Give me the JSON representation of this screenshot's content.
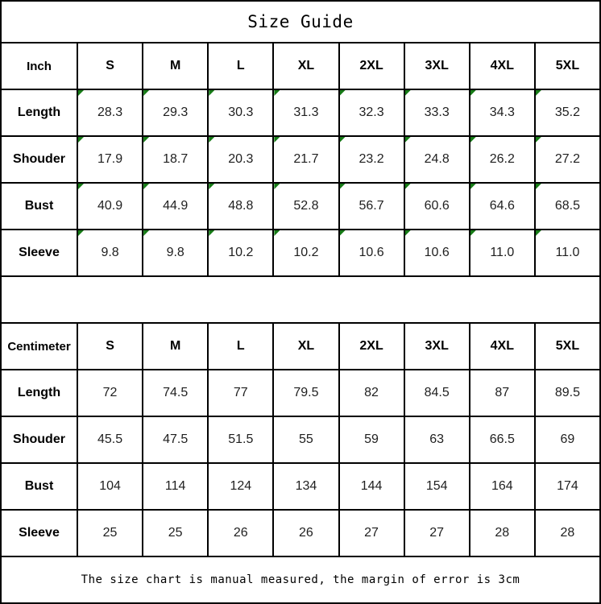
{
  "title": "Size Guide",
  "footer_note": "The size chart is manual measured, the margin of error is 3cm",
  "colors": {
    "border": "#000000",
    "background": "#ffffff",
    "text": "#1f1f1f",
    "corner_marker_green": "#177c17"
  },
  "tables": [
    {
      "unit": "Inch",
      "sizes": [
        "S",
        "M",
        "L",
        "XL",
        "2XL",
        "3XL",
        "4XL",
        "5XL"
      ],
      "cell_corner_markers": true,
      "rows": [
        {
          "label": "Length",
          "values": [
            "28.3",
            "29.3",
            "30.3",
            "31.3",
            "32.3",
            "33.3",
            "34.3",
            "35.2"
          ]
        },
        {
          "label": "Shouder",
          "values": [
            "17.9",
            "18.7",
            "20.3",
            "21.7",
            "23.2",
            "24.8",
            "26.2",
            "27.2"
          ]
        },
        {
          "label": "Bust",
          "values": [
            "40.9",
            "44.9",
            "48.8",
            "52.8",
            "56.7",
            "60.6",
            "64.6",
            "68.5"
          ]
        },
        {
          "label": "Sleeve",
          "values": [
            "9.8",
            "9.8",
            "10.2",
            "10.2",
            "10.6",
            "10.6",
            "11.0",
            "11.0"
          ]
        }
      ]
    },
    {
      "unit": "Centimeter",
      "sizes": [
        "S",
        "M",
        "L",
        "XL",
        "2XL",
        "3XL",
        "4XL",
        "5XL"
      ],
      "cell_corner_markers": false,
      "rows": [
        {
          "label": "Length",
          "values": [
            "72",
            "74.5",
            "77",
            "79.5",
            "82",
            "84.5",
            "87",
            "89.5"
          ]
        },
        {
          "label": "Shouder",
          "values": [
            "45.5",
            "47.5",
            "51.5",
            "55",
            "59",
            "63",
            "66.5",
            "69"
          ]
        },
        {
          "label": "Bust",
          "values": [
            "104",
            "114",
            "124",
            "134",
            "144",
            "154",
            "164",
            "174"
          ]
        },
        {
          "label": "Sleeve",
          "values": [
            "25",
            "25",
            "26",
            "26",
            "27",
            "27",
            "28",
            "28"
          ]
        }
      ]
    }
  ]
}
